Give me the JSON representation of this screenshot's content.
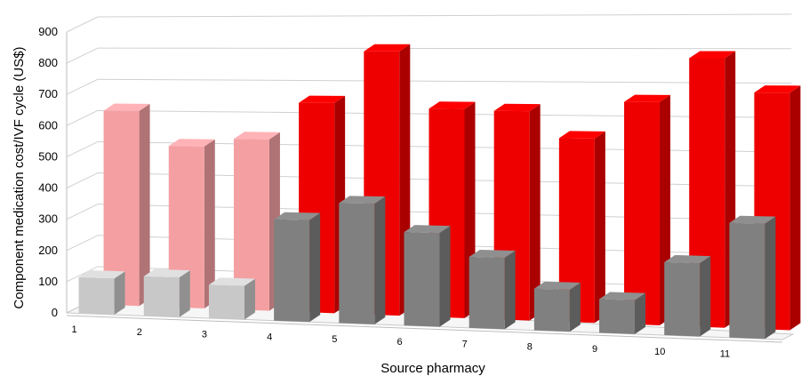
{
  "chart_data": {
    "type": "bar",
    "style": "3d-column",
    "title": "",
    "xlabel": "Source pharmacy",
    "ylabel": "Component medication cost/IVF cycle  (US$)",
    "ylim": [
      0,
      900
    ],
    "yticks": [
      0,
      100,
      200,
      300,
      400,
      500,
      600,
      700,
      800,
      900
    ],
    "grid": true,
    "categories": [
      "1",
      "2",
      "3",
      "4",
      "5",
      "6",
      "7",
      "8",
      "9",
      "10",
      "11"
    ],
    "series": [
      {
        "role": "back",
        "values": [
          620,
          510,
          535,
          650,
          810,
          635,
          630,
          550,
          660,
          790,
          690
        ],
        "colors": [
          "#f4a0a3",
          "#f4a0a3",
          "#f4a0a3",
          "#ee0000",
          "#ee0000",
          "#ee0000",
          "#ee0000",
          "#ee0000",
          "#ee0000",
          "#ee0000",
          "#ee0000"
        ]
      },
      {
        "role": "front",
        "values": [
          115,
          125,
          105,
          315,
          370,
          285,
          215,
          125,
          100,
          215,
          335
        ],
        "colors": [
          "#c8c8c8",
          "#c8c8c8",
          "#c8c8c8",
          "#808080",
          "#808080",
          "#808080",
          "#808080",
          "#808080",
          "#808080",
          "#808080",
          "#808080"
        ]
      }
    ]
  }
}
